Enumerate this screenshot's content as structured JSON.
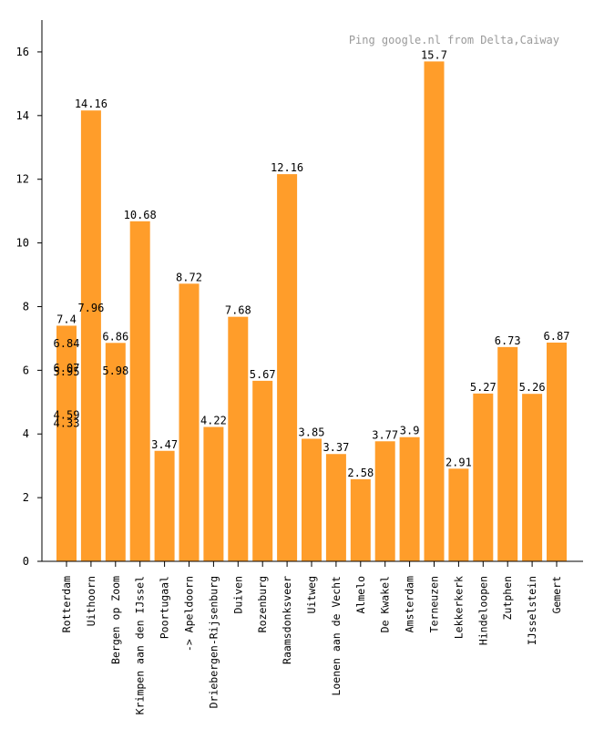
{
  "chart_data": {
    "type": "bar",
    "title": "Ping google.nl from Delta,Caiway",
    "xlabel": "",
    "ylabel": "",
    "ylim": [
      0,
      17
    ],
    "yticks": [
      0,
      2,
      4,
      6,
      8,
      10,
      12,
      14,
      16
    ],
    "bar_color": "#ff9d2a",
    "categories": [
      "Rotterdam",
      "Uithoorn",
      "Bergen op Zoom",
      "Krimpen aan den IJssel",
      "Poortugaal",
      "-> Apeldoorn",
      "Driebergen-Rijsenburg",
      "Duiven",
      "Rozenburg",
      "Raamsdonksveer",
      "Uitweg",
      "Loenen aan de Vecht",
      "Almelo",
      "De Kwakel",
      "Amsterdam",
      "Terneuzen",
      "Lekkerkerk",
      "Hindeloopen",
      "Zutphen",
      "IJsselstein",
      "Gemert"
    ],
    "values": [
      7.4,
      14.16,
      6.86,
      10.68,
      3.47,
      8.72,
      4.22,
      7.68,
      5.67,
      12.16,
      3.85,
      3.37,
      2.58,
      3.77,
      3.9,
      15.7,
      2.91,
      5.27,
      6.73,
      5.26,
      6.87
    ],
    "value_labels": [
      "7.4",
      "14.16",
      "6.86",
      "10.68",
      "3.47",
      "8.72",
      "4.22",
      "7.68",
      "5.67",
      "12.16",
      "3.85",
      "3.37",
      "2.58",
      "3.77",
      "3.9",
      "15.7",
      "2.91",
      "5.27",
      "6.73",
      "5.26",
      "6.87"
    ],
    "annotations": [
      {
        "category": "Rotterdam",
        "value": 6.84,
        "text": "6.84"
      },
      {
        "category": "Rotterdam",
        "value": 6.07,
        "text": "6.07"
      },
      {
        "category": "Rotterdam",
        "value": 5.95,
        "text": "5.95"
      },
      {
        "category": "Rotterdam",
        "value": 4.59,
        "text": "4.59"
      },
      {
        "category": "Rotterdam",
        "value": 4.33,
        "text": "4.33"
      },
      {
        "category": "Uithoorn",
        "value": 7.96,
        "text": "7.96"
      },
      {
        "category": "Bergen op Zoom",
        "value": 5.98,
        "text": "5.98"
      }
    ]
  }
}
